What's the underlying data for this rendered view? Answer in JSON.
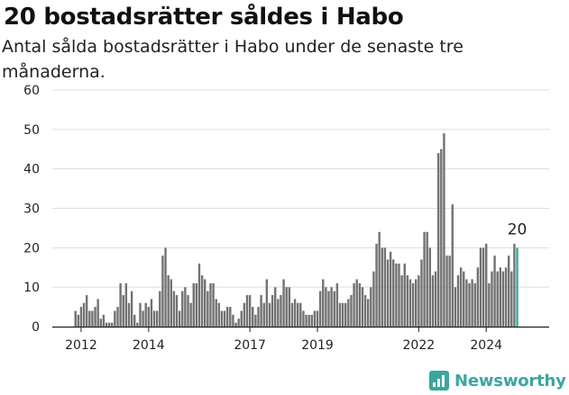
{
  "header": {
    "title": "20 bostadsrätter såldes i Habo",
    "subtitle": "Antal sålda bostadsrätter i Habo under de senaste tre månaderna."
  },
  "brand": {
    "name": "Newsworthy",
    "icon": "newsworthy-logo-icon",
    "color": "#3aa79e"
  },
  "colors": {
    "bar": "#727272",
    "highlight": "#3aa79e",
    "grid": "#dddddd"
  },
  "chart_data": {
    "type": "bar",
    "title": "20 bostadsrätter såldes i Habo",
    "subtitle": "Antal sålda bostadsrätter i Habo under de senaste tre månaderna.",
    "xlabel": "",
    "ylabel": "",
    "ylim": [
      0,
      60
    ],
    "yticks": [
      0,
      10,
      20,
      30,
      40,
      50,
      60
    ],
    "xticks": [
      "2012",
      "2014",
      "2017",
      "2019",
      "2022",
      "2024"
    ],
    "grid": true,
    "start": "2011-11",
    "interval": "month",
    "annotation": {
      "label": "20",
      "target": "last"
    },
    "values": [
      4,
      3,
      5,
      6,
      8,
      4,
      4,
      5,
      7,
      2,
      3,
      1,
      1,
      1,
      4,
      5,
      11,
      8,
      11,
      6,
      9,
      3,
      1,
      6,
      4,
      6,
      5,
      7,
      4,
      4,
      9,
      18,
      20,
      13,
      12,
      9,
      8,
      4,
      9,
      10,
      8,
      6,
      11,
      11,
      16,
      13,
      12,
      9,
      11,
      11,
      7,
      6,
      4,
      4,
      5,
      5,
      3,
      1,
      2,
      4,
      6,
      8,
      8,
      5,
      3,
      5,
      8,
      6,
      12,
      6,
      8,
      10,
      7,
      8,
      12,
      10,
      10,
      6,
      7,
      6,
      6,
      4,
      3,
      3,
      3,
      4,
      4,
      9,
      12,
      10,
      9,
      10,
      9,
      11,
      6,
      6,
      6,
      7,
      8,
      11,
      12,
      11,
      10,
      8,
      7,
      10,
      14,
      21,
      24,
      20,
      20,
      17,
      19,
      17,
      16,
      16,
      13,
      16,
      13,
      12,
      11,
      12,
      13,
      17,
      24,
      24,
      20,
      13,
      14,
      44,
      45,
      49,
      18,
      18,
      31,
      10,
      13,
      15,
      14,
      12,
      11,
      12,
      11,
      15,
      20,
      20,
      21,
      11,
      14,
      18,
      14,
      15,
      14,
      15,
      18,
      14,
      21,
      20
    ]
  }
}
